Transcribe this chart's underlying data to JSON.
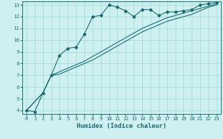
{
  "xlabel": "Humidex (Indice chaleur)",
  "bg_color": "#cff0f0",
  "grid_color": "#aadddd",
  "line_color": "#1a6b6b",
  "xlim": [
    -0.5,
    23.5
  ],
  "ylim": [
    3.7,
    13.3
  ],
  "xticks": [
    0,
    1,
    2,
    3,
    4,
    5,
    6,
    7,
    8,
    9,
    10,
    11,
    12,
    13,
    14,
    15,
    16,
    17,
    18,
    19,
    20,
    21,
    22,
    23
  ],
  "yticks": [
    4,
    5,
    6,
    7,
    8,
    9,
    10,
    11,
    12,
    13
  ],
  "series1_x": [
    0,
    1,
    2,
    3,
    4,
    5,
    6,
    7,
    8,
    9,
    10,
    11,
    12,
    13,
    14,
    15,
    16,
    17,
    18,
    19,
    20,
    21,
    22,
    23
  ],
  "series1_y": [
    4.0,
    3.9,
    5.5,
    7.0,
    8.7,
    9.3,
    9.4,
    10.5,
    12.0,
    12.1,
    13.0,
    12.8,
    12.5,
    12.0,
    12.6,
    12.6,
    12.1,
    12.4,
    12.4,
    12.5,
    12.6,
    13.0,
    13.1,
    13.2
  ],
  "series2_x": [
    0,
    2,
    3,
    4,
    5,
    6,
    7,
    8,
    9,
    10,
    11,
    12,
    13,
    14,
    15,
    16,
    17,
    18,
    19,
    20,
    21,
    22,
    23
  ],
  "series2_y": [
    4.0,
    5.5,
    7.0,
    7.3,
    7.6,
    7.9,
    8.2,
    8.6,
    9.0,
    9.4,
    9.8,
    10.2,
    10.6,
    11.0,
    11.3,
    11.6,
    11.9,
    12.1,
    12.3,
    12.5,
    12.7,
    12.9,
    13.1
  ],
  "series3_x": [
    0,
    2,
    3,
    4,
    5,
    6,
    7,
    8,
    9,
    10,
    11,
    12,
    13,
    14,
    15,
    16,
    17,
    18,
    19,
    20,
    21,
    22,
    23
  ],
  "series3_y": [
    4.0,
    5.5,
    7.0,
    7.1,
    7.4,
    7.7,
    8.0,
    8.3,
    8.7,
    9.1,
    9.5,
    9.9,
    10.3,
    10.7,
    11.0,
    11.3,
    11.6,
    11.8,
    12.0,
    12.2,
    12.5,
    12.8,
    13.0
  ]
}
